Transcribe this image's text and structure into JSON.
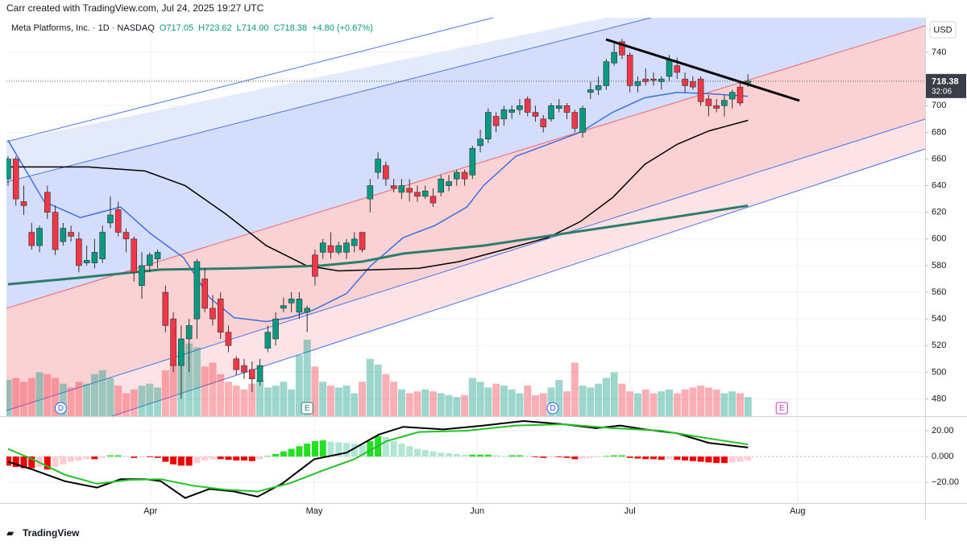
{
  "header": {
    "credit": "Carr created with TradingView.com, Jul 24, 2025 19:27 UTC"
  },
  "legend": {
    "symbol": "Meta Platforms, Inc. · 1D · NASDAQ",
    "ohlc": [
      "O717.05",
      "H723.62",
      "L714.00",
      "C718.38",
      "+4.80 (+0.67%)"
    ]
  },
  "price_axis": {
    "currency": "USD",
    "countdown": "32:06"
  },
  "footer": {
    "brand": "TradingView"
  },
  "chart_data": [
    {
      "type": "candlestick",
      "open": [
        645,
        660,
        628,
        605,
        595,
        635,
        620,
        598,
        605,
        600,
        582,
        582,
        585,
        612,
        622,
        605,
        600,
        565,
        580,
        585,
        560,
        540,
        505,
        525,
        540,
        570,
        548,
        555,
        530,
        510,
        505,
        502,
        493,
        518,
        525,
        548,
        552,
        545,
        545,
        588,
        590,
        595,
        590,
        590,
        595,
        605,
        630,
        650,
        655,
        640,
        635,
        638,
        635,
        632,
        632,
        635,
        640,
        645,
        650,
        648,
        670,
        675,
        692,
        690,
        695,
        697,
        705,
        695,
        690,
        690,
        698,
        700,
        695,
        680,
        710,
        712,
        715,
        732,
        748,
        738,
        715,
        720,
        720,
        718,
        722,
        730,
        720,
        718,
        720,
        705,
        700,
        700,
        705,
        714,
        717.05
      ],
      "high": [
        662,
        662,
        640,
        612,
        610,
        640,
        625,
        612,
        610,
        605,
        595,
        600,
        610,
        632,
        628,
        608,
        602,
        590,
        590,
        592,
        565,
        545,
        535,
        540,
        585,
        578,
        558,
        560,
        535,
        512,
        510,
        508,
        510,
        535,
        545,
        556,
        560,
        560,
        550,
        592,
        600,
        605,
        598,
        600,
        605,
        605,
        645,
        665,
        658,
        645,
        645,
        645,
        640,
        640,
        638,
        648,
        648,
        652,
        652,
        670,
        682,
        698,
        695,
        700,
        700,
        705,
        707,
        700,
        693,
        702,
        705,
        702,
        697,
        700,
        718,
        722,
        735,
        748,
        750,
        740,
        722,
        728,
        725,
        722,
        738,
        736,
        725,
        722,
        722,
        708,
        705,
        708,
        712,
        718,
        723.62
      ],
      "low": [
        640,
        625,
        618,
        592,
        590,
        615,
        588,
        595,
        598,
        575,
        580,
        578,
        582,
        608,
        602,
        590,
        568,
        555,
        575,
        578,
        530,
        500,
        480,
        500,
        525,
        545,
        535,
        525,
        515,
        498,
        495,
        485,
        490,
        515,
        520,
        545,
        545,
        540,
        530,
        565,
        585,
        585,
        588,
        585,
        590,
        590,
        620,
        645,
        640,
        635,
        630,
        628,
        628,
        630,
        624,
        632,
        636,
        640,
        640,
        645,
        665,
        672,
        680,
        685,
        690,
        693,
        692,
        688,
        680,
        688,
        695,
        690,
        680,
        676,
        705,
        708,
        712,
        730,
        735,
        710,
        710,
        715,
        715,
        712,
        718,
        720,
        710,
        712,
        700,
        692,
        695,
        692,
        698,
        700,
        714
      ],
      "close": [
        660,
        630,
        625,
        595,
        608,
        620,
        592,
        608,
        602,
        580,
        584,
        590,
        605,
        618,
        605,
        600,
        575,
        580,
        588,
        590,
        535,
        505,
        525,
        535,
        583,
        548,
        540,
        530,
        520,
        502,
        500,
        495,
        505,
        530,
        540,
        550,
        555,
        555,
        548,
        572,
        597,
        590,
        595,
        597,
        600,
        592,
        640,
        660,
        645,
        638,
        640,
        635,
        632,
        636,
        627,
        645,
        643,
        650,
        645,
        668,
        675,
        695,
        685,
        697,
        697,
        700,
        695,
        692,
        684,
        700,
        700,
        695,
        683,
        698,
        712,
        715,
        733,
        740,
        738,
        715,
        718,
        718,
        719,
        720,
        734,
        725,
        715,
        714,
        703,
        700,
        698,
        704,
        710,
        702,
        718.38
      ],
      "volume": [
        19,
        20,
        18,
        20,
        23,
        22,
        20,
        17,
        15,
        18,
        17,
        22,
        24,
        20,
        16,
        12,
        14,
        16,
        17,
        15,
        24,
        28,
        34,
        38,
        36,
        26,
        28,
        22,
        18,
        16,
        14,
        17,
        19,
        15,
        16,
        18,
        14,
        32,
        40,
        26,
        18,
        16,
        15,
        16,
        12,
        18,
        30,
        27,
        22,
        18,
        14,
        12,
        13,
        14,
        13,
        12,
        11,
        10,
        11,
        20,
        18,
        15,
        17,
        16,
        14,
        12,
        16,
        11,
        12,
        15,
        19,
        13,
        28,
        16,
        15,
        17,
        20,
        23,
        17,
        13,
        12,
        14,
        12,
        13,
        14,
        12,
        14,
        15,
        16,
        15,
        14,
        12,
        13,
        12,
        10
      ],
      "up_color": "#089981",
      "down_color": "#f23645",
      "overlays": [
        {
          "color": "#3d6fe0",
          "x": [
            0,
            4.6,
            9.2,
            14.3,
            18.1,
            22.3,
            25.6,
            28.7,
            32.8,
            35.8,
            38.9,
            43,
            46.1,
            50.2,
            54.2,
            58.3,
            60.4,
            64.5,
            68.6,
            72.7,
            76.8,
            80.9,
            85,
            89,
            94
          ],
          "values": [
            674,
            628,
            616,
            624,
            604,
            586,
            556,
            541,
            538,
            541,
            547,
            559,
            580,
            601,
            610,
            624,
            640,
            662,
            671,
            680,
            695,
            706,
            710,
            709,
            707
          ]
        },
        {
          "color": "#000000",
          "x": [
            0,
            5.1,
            10.2,
            17.4,
            22.5,
            27.6,
            32.8,
            37.9,
            42,
            47.1,
            52.2,
            57.3,
            62.4,
            68.6,
            72.7,
            76.8,
            80.9,
            85,
            89,
            94
          ],
          "values": [
            654,
            654,
            654,
            651,
            640,
            619,
            595,
            580,
            576,
            577,
            578,
            583,
            591,
            601,
            613,
            631,
            656,
            671,
            681,
            689
          ]
        },
        {
          "color": "#2e7d6a",
          "x": [
            0,
            9.2,
            19.4,
            29.7,
            39.9,
            45,
            50.2,
            60.4,
            70.6,
            80.9,
            94
          ],
          "values": [
            566,
            571,
            577,
            578,
            580,
            583,
            589,
            595,
            604,
            613,
            625
          ]
        }
      ],
      "events": [
        {
          "label": "D",
          "x": 6.7,
          "color": "#2962ff"
        },
        {
          "label": "E",
          "x": 38,
          "color": "#2e7d6a"
        },
        {
          "label": "D",
          "x": 69.2,
          "color": "#2962ff"
        },
        {
          "label": "E",
          "x": 98.3,
          "color": "#c837c8"
        }
      ],
      "xlim": [
        -0.2,
        116.5
      ],
      "xticks": [
        {
          "value": 18.1,
          "label": "Apr"
        },
        {
          "value": 38.9,
          "label": "May"
        },
        {
          "value": 59.6,
          "label": "Jun"
        },
        {
          "value": 79,
          "label": "Jul"
        },
        {
          "value": 100.3,
          "label": "Aug"
        }
      ],
      "ylim": [
        467,
        766
      ],
      "yticks": [
        480,
        500,
        520,
        540,
        560,
        580,
        600,
        620,
        640,
        660,
        680,
        700,
        720,
        740
      ],
      "grid": true
    },
    {
      "type": "macd",
      "histogram": [
        -7,
        -8,
        -9,
        -9,
        -8,
        -10,
        -8,
        -6,
        -4,
        -3,
        -2,
        -2,
        -1,
        1,
        1,
        0.5,
        -1,
        -0.5,
        -0.5,
        -1,
        -4,
        -6,
        -7,
        -7,
        -5,
        -3,
        -2,
        -2,
        -2.5,
        -3,
        -3,
        -3.5,
        -2,
        0.5,
        2,
        4,
        6,
        8,
        10,
        12,
        12.5,
        11.5,
        11,
        10.5,
        10,
        9,
        12,
        16,
        15,
        12,
        10,
        8,
        6,
        5,
        4,
        3,
        2.5,
        2,
        1.5,
        1.5,
        1.5,
        1.5,
        1,
        0.5,
        1,
        1,
        0.5,
        -0.5,
        -1,
        -0.5,
        -0.5,
        -1,
        -2,
        -1.5,
        -1,
        -0.5,
        0.5,
        1,
        1,
        -1,
        -1.5,
        -2,
        -2,
        -2.5,
        -2,
        -2.5,
        -3,
        -3.5,
        -4,
        -4.5,
        -5,
        -5,
        -4.5,
        -4,
        -3
      ],
      "series": [
        {
          "color": "#000000",
          "x": [
            0,
            3.1,
            7.2,
            11.3,
            14.3,
            17.4,
            19.4,
            22.5,
            25.6,
            28.7,
            31.7,
            34.8,
            38.9,
            43,
            47.1,
            50.2,
            55.3,
            60.4,
            65.5,
            70.6,
            74.7,
            77.8,
            80.9,
            85,
            89,
            94
          ],
          "values": [
            -4,
            -10,
            -19,
            -24,
            -17.5,
            -17.5,
            -19,
            -32,
            -25,
            -27,
            -31,
            -21,
            -2,
            3,
            17,
            23,
            21,
            24,
            27.5,
            25,
            22,
            24,
            21,
            18,
            10.6,
            7
          ]
        },
        {
          "color": "#22c322",
          "x": [
            0,
            3.1,
            7.2,
            11.3,
            15.4,
            19.4,
            23.5,
            27.6,
            31.7,
            35.8,
            39.9,
            44,
            48.1,
            52.2,
            58.3,
            64.5,
            70.6,
            76.8,
            82.9,
            89,
            94
          ],
          "values": [
            6,
            -2,
            -14,
            -21,
            -18,
            -17.5,
            -22.5,
            -25.6,
            -27,
            -20.6,
            -11,
            -2,
            12,
            19,
            20,
            24,
            25,
            22,
            20,
            14,
            9.4
          ]
        }
      ],
      "ylim": [
        -36,
        30.6
      ],
      "yticks": [
        {
          "value": 20,
          "label": "20.00"
        },
        {
          "value": 0,
          "label": "0.000"
        },
        {
          "value": -20,
          "label": "−20.00"
        }
      ]
    }
  ]
}
